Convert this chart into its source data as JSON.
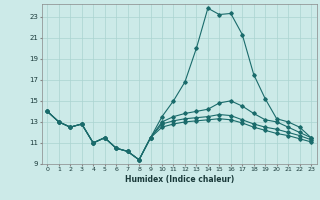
{
  "xlabel": "Humidex (Indice chaleur)",
  "background_color": "#cceae8",
  "grid_color": "#aad4d0",
  "line_color": "#1a6b6b",
  "xlim": [
    -0.5,
    23.5
  ],
  "ylim": [
    9,
    24.2
  ],
  "yticks": [
    9,
    11,
    13,
    15,
    17,
    19,
    21,
    23
  ],
  "xticks": [
    0,
    1,
    2,
    3,
    4,
    5,
    6,
    7,
    8,
    9,
    10,
    11,
    12,
    13,
    14,
    15,
    16,
    17,
    18,
    19,
    20,
    21,
    22,
    23
  ],
  "line1_x": [
    0,
    1,
    2,
    3,
    4,
    5,
    6,
    7,
    8,
    9,
    10,
    11,
    12,
    13,
    14,
    15,
    16,
    17,
    18,
    19,
    20,
    21,
    22,
    23
  ],
  "line1_y": [
    14.0,
    13.0,
    12.5,
    12.8,
    11.0,
    11.5,
    10.5,
    10.2,
    9.4,
    11.5,
    13.5,
    15.0,
    16.8,
    20.0,
    23.8,
    23.2,
    23.3,
    21.3,
    17.5,
    15.2,
    13.3,
    13.0,
    12.5,
    11.5
  ],
  "line2_x": [
    0,
    1,
    2,
    3,
    4,
    5,
    6,
    7,
    8,
    9,
    10,
    11,
    12,
    13,
    14,
    15,
    16,
    17,
    18,
    19,
    20,
    21,
    22,
    23
  ],
  "line2_y": [
    14.0,
    13.0,
    12.5,
    12.8,
    11.0,
    11.5,
    10.5,
    10.2,
    9.4,
    11.5,
    13.0,
    13.5,
    13.8,
    14.0,
    14.2,
    14.8,
    15.0,
    14.5,
    13.8,
    13.2,
    13.0,
    12.5,
    12.0,
    11.5
  ],
  "line3_x": [
    0,
    1,
    2,
    3,
    4,
    5,
    6,
    7,
    8,
    9,
    10,
    11,
    12,
    13,
    14,
    15,
    16,
    17,
    18,
    19,
    20,
    21,
    22,
    23
  ],
  "line3_y": [
    14.0,
    13.0,
    12.5,
    12.8,
    11.0,
    11.5,
    10.5,
    10.2,
    9.4,
    11.5,
    12.8,
    13.1,
    13.3,
    13.4,
    13.5,
    13.7,
    13.6,
    13.2,
    12.8,
    12.5,
    12.3,
    12.0,
    11.7,
    11.3
  ],
  "line4_x": [
    0,
    1,
    2,
    3,
    4,
    5,
    6,
    7,
    8,
    9,
    10,
    11,
    12,
    13,
    14,
    15,
    16,
    17,
    18,
    19,
    20,
    21,
    22,
    23
  ],
  "line4_y": [
    14.0,
    13.0,
    12.5,
    12.8,
    11.0,
    11.5,
    10.5,
    10.2,
    9.4,
    11.5,
    12.5,
    12.8,
    13.0,
    13.1,
    13.2,
    13.3,
    13.2,
    12.9,
    12.5,
    12.2,
    11.9,
    11.7,
    11.4,
    11.1
  ]
}
